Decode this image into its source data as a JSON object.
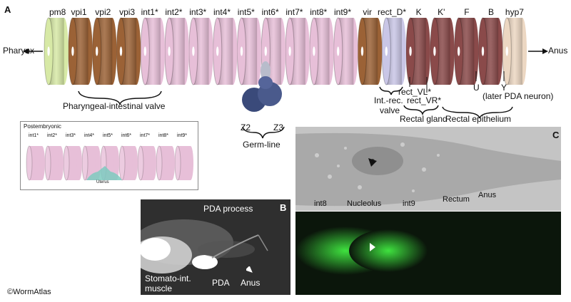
{
  "panel_a": {
    "letter": "A",
    "cells": [
      {
        "label": "pm8",
        "color": "#d7e9a6"
      },
      {
        "label": "vpi1",
        "color": "#9b6236"
      },
      {
        "label": "vpi2",
        "color": "#9b6236"
      },
      {
        "label": "vpi3",
        "color": "#9b6236"
      },
      {
        "label": "int1*",
        "color": "#e7bfd8"
      },
      {
        "label": "int2*",
        "color": "#e7bfd8"
      },
      {
        "label": "int3*",
        "color": "#e7bfd8"
      },
      {
        "label": "int4*",
        "color": "#e7bfd8"
      },
      {
        "label": "int5*",
        "color": "#e7bfd8"
      },
      {
        "label": "int6*",
        "color": "#e7bfd8"
      },
      {
        "label": "int7*",
        "color": "#e7bfd8"
      },
      {
        "label": "int8*",
        "color": "#e7bfd8"
      },
      {
        "label": "int9*",
        "color": "#e7bfd8"
      },
      {
        "label": "vir",
        "color": "#9b6236"
      },
      {
        "label": "rect_D*",
        "color": "#c9c6e6"
      },
      {
        "label": "K",
        "color": "#8a4a4a"
      },
      {
        "label": "K'",
        "color": "#8a4a4a"
      },
      {
        "label": "F",
        "color": "#8a4a4a"
      },
      {
        "label": "B",
        "color": "#8a4a4a"
      },
      {
        "label": "hyp7",
        "color": "#ecd7c2"
      }
    ],
    "pharynx": "Pharynx",
    "anus": "Anus",
    "pharyngeal_valve": "Pharyngeal-intestinal valve",
    "z2": "Z2",
    "z3": "Z3",
    "germline": "Germ-line",
    "int_rec_valve_1": "Int.-rec.",
    "int_rec_valve_2": "valve",
    "rect_vl": "rect_VL*",
    "rect_vr": "rect_VR*",
    "rectal_gland": "Rectal gland",
    "u": "U",
    "y": "Y",
    "later_pda": "(later PDA neuron)",
    "rectal_epithelium": "Rectal epithelium"
  },
  "inset": {
    "title": "Postembryonic",
    "cells": [
      "int1*",
      "int2*",
      "int3*",
      "int4*",
      "int5*",
      "int6*",
      "int7*",
      "int8*",
      "int9*"
    ],
    "uterus": "Uterus"
  },
  "panel_b": {
    "letter": "B",
    "pda_process": "PDA process",
    "stomato_1": "Stomato-int.",
    "stomato_2": "muscle",
    "pda": "PDA",
    "anus": "Anus"
  },
  "panel_c": {
    "letter": "C",
    "int8": "int8",
    "nucleolus": "Nucleolus",
    "int9": "int9",
    "rectum": "Rectum",
    "anus": "Anus"
  },
  "copyright": "©WormAtlas"
}
